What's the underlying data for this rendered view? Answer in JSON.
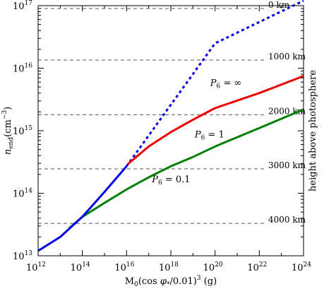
{
  "chart_data": {
    "type": "line",
    "xscale": "log",
    "yscale": "log",
    "xlim": [
      1000000000000.0,
      1e+24
    ],
    "ylim": [
      10000000000000.0,
      1e+17
    ],
    "xlabel": "M₀(cos φ* / 0.01)³ (g)",
    "ylabel": "n_end (cm⁻³)",
    "right_label": "height above photosphere",
    "grid": false,
    "x_ticks": [
      {
        "value": 1000000000000.0,
        "label": "10",
        "exp": "12"
      },
      {
        "value": 100000000000000.0,
        "label": "10",
        "exp": "14"
      },
      {
        "value": 1e+16,
        "label": "10",
        "exp": "16"
      },
      {
        "value": 1e+18,
        "label": "10",
        "exp": "18"
      },
      {
        "value": 1e+20,
        "label": "10",
        "exp": "20"
      },
      {
        "value": 1e+22,
        "label": "10",
        "exp": "22"
      },
      {
        "value": 1e+24,
        "label": "10",
        "exp": "24"
      }
    ],
    "y_ticks": [
      {
        "value": 10000000000000.0,
        "label": "10",
        "exp": "13"
      },
      {
        "value": 100000000000000.0,
        "label": "10",
        "exp": "14"
      },
      {
        "value": 1000000000000000.0,
        "label": "10",
        "exp": "15"
      },
      {
        "value": 1e+16,
        "label": "10",
        "exp": "16"
      },
      {
        "value": 1e+17,
        "label": "10",
        "exp": "17"
      }
    ],
    "height_lines": [
      {
        "label": "0 km",
        "y": 9e+16
      },
      {
        "label": "1000 km",
        "y": 1.35e+16
      },
      {
        "label": "2000 km",
        "y": 1800000000000000.0
      },
      {
        "label": "3000 km",
        "y": 245000000000000.0
      },
      {
        "label": "4000 km",
        "y": 33000000000000.0
      }
    ],
    "series": [
      {
        "name": "P₆ = ∞",
        "color": "#0000ee",
        "style": "dotted",
        "points": [
          [
            1e+16,
            270000000000000.0
          ],
          [
            1e+18,
            2600000000000000.0
          ],
          [
            1e+20,
            2.5e+16
          ],
          [
            1e+24,
            1.2e+17
          ]
        ]
      },
      {
        "name": "P₆ = 1",
        "color": "#ee0000",
        "style": "solid",
        "points": [
          [
            1.1e+16,
            290000000000000.0
          ],
          [
            1e+17,
            560000000000000.0
          ],
          [
            1e+18,
            950000000000000.0
          ],
          [
            1e+19,
            1500000000000000.0
          ],
          [
            1e+20,
            2300000000000000.0
          ],
          [
            1e+22,
            4000000000000000.0
          ],
          [
            1e+24,
            7500000000000000.0
          ]
        ]
      },
      {
        "name": "P₆ = 0.1",
        "color": "#008000",
        "style": "solid",
        "points": [
          [
            25000000000000.0,
            27500000000000.0
          ],
          [
            100000000000000.0,
            42000000000000.0
          ],
          [
            1000000000000000.0,
            70000000000000.0
          ],
          [
            1e+16,
            115000000000000.0
          ],
          [
            1e+17,
            180000000000000.0
          ],
          [
            1e+18,
            270000000000000.0
          ],
          [
            1e+19,
            380000000000000.0
          ],
          [
            1e+20,
            560000000000000.0
          ],
          [
            1e+22,
            1100000000000000.0
          ],
          [
            1e+24,
            2200000000000000.0
          ]
        ]
      },
      {
        "name": "",
        "color": "#0000ee",
        "style": "solid",
        "points": [
          [
            1000000000000.0,
            12000000000000.0
          ],
          [
            10000000000000.0,
            20000000000000.0
          ],
          [
            100000000000000.0,
            42000000000000.0
          ],
          [
            1000000000000000.0,
            105000000000000.0
          ],
          [
            1e+16,
            270000000000000.0
          ]
        ]
      }
    ],
    "curve_labels": [
      {
        "main": "P",
        "sub": "6",
        "rest": " = ∞",
        "x": 6e+19,
        "y": 5200000000000000.0
      },
      {
        "main": "P",
        "sub": "6",
        "rest": " = 1",
        "x": 1.2e+19,
        "y": 780000000000000.0
      },
      {
        "main": "P",
        "sub": "6",
        "rest": " = 0.1",
        "x": 1.4e+17,
        "y": 150000000000000.0
      }
    ]
  }
}
